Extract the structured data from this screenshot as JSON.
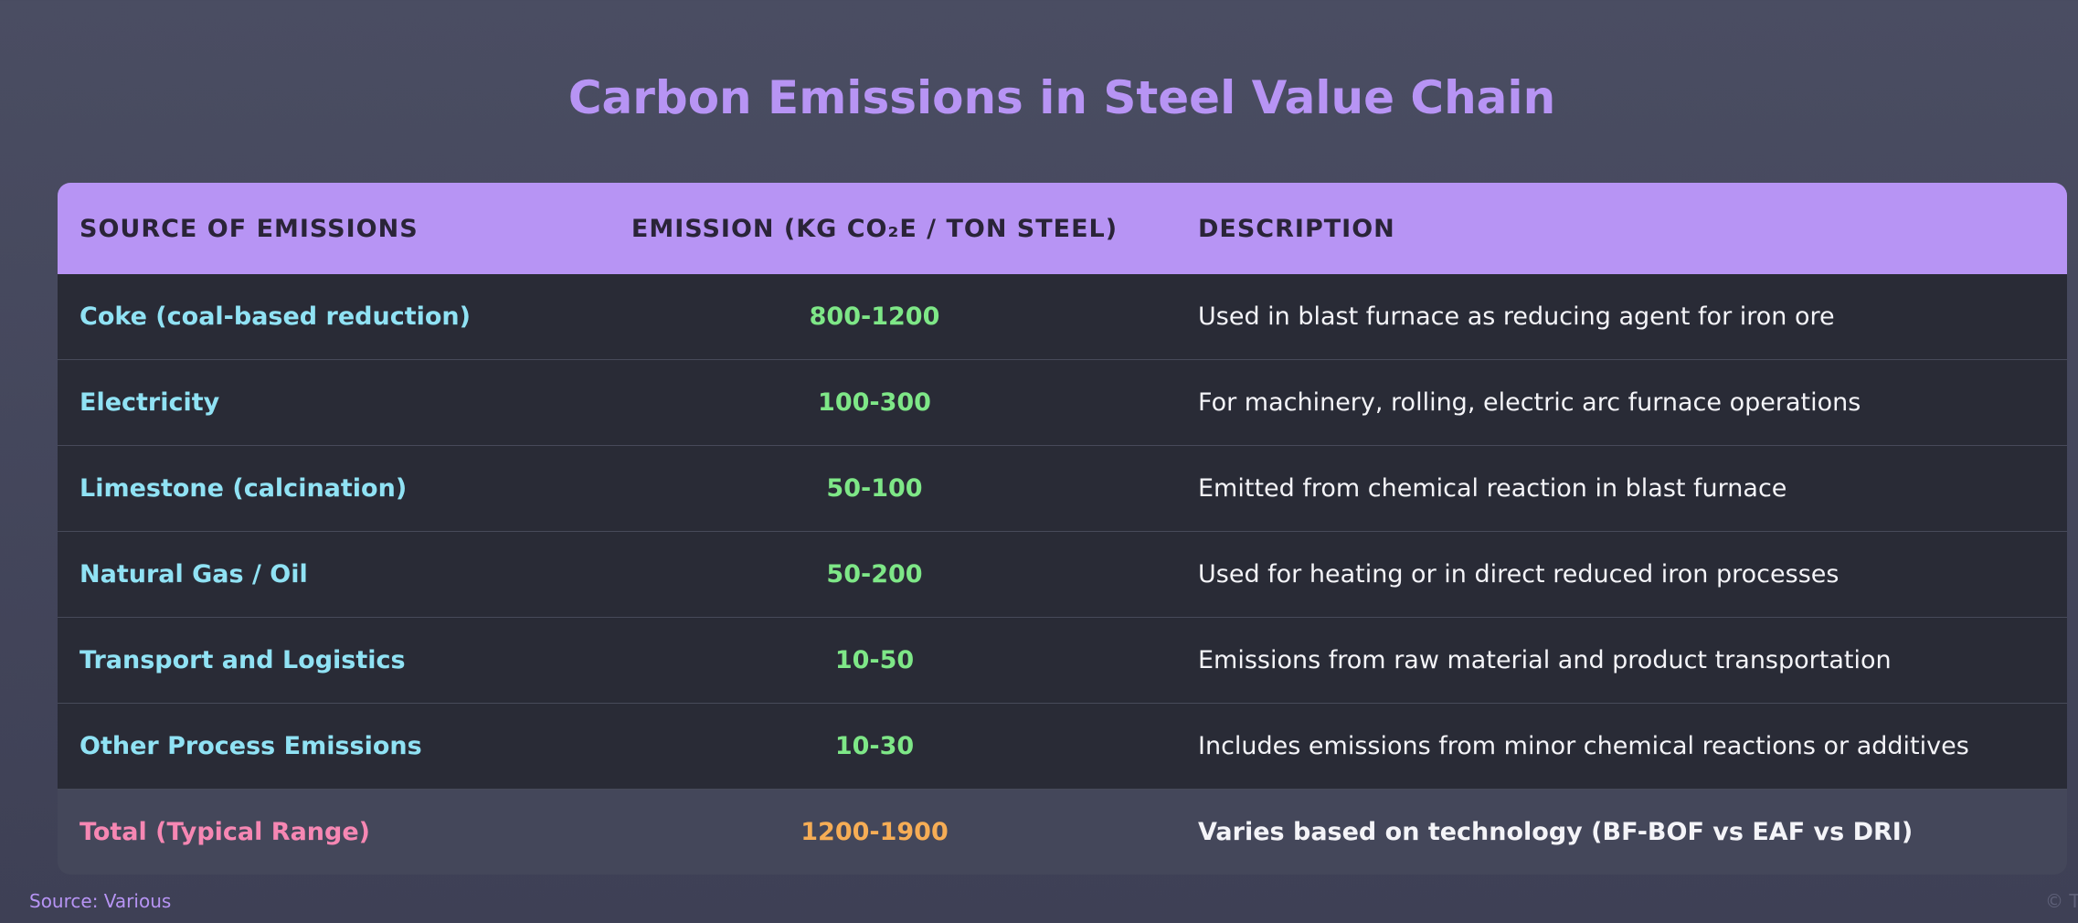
{
  "title": "Carbon Emissions in Steel Value Chain",
  "table": {
    "header": [
      "SOURCE OF EMISSIONS",
      "EMISSION (KG CO₂E / TON STEEL)",
      "DESCRIPTION"
    ],
    "rows": [
      [
        "Coke (coal-based reduction)",
        "800-1200",
        "Used in blast furnace as reducing agent for iron ore"
      ],
      [
        "Electricity",
        "100-300",
        "For machinery, rolling, electric arc furnace operations"
      ],
      [
        "Limestone (calcination)",
        "50-100",
        "Emitted from chemical reaction in blast furnace"
      ],
      [
        "Natural Gas / Oil",
        "50-200",
        "Used for heating or in direct reduced iron processes"
      ],
      [
        "Transport and Logistics",
        "10-50",
        "Emissions from raw material and product transportation"
      ],
      [
        "Other Process Emissions",
        "10-30",
        "Includes emissions from minor chemical reactions or additives"
      ]
    ],
    "total": [
      "Total (Typical Range)",
      "1200-1900",
      "Varies based on technology (BF-BOF vs EAF vs DRI)"
    ]
  },
  "footer": {
    "source": "Source: Various",
    "copyright": "© T"
  }
}
